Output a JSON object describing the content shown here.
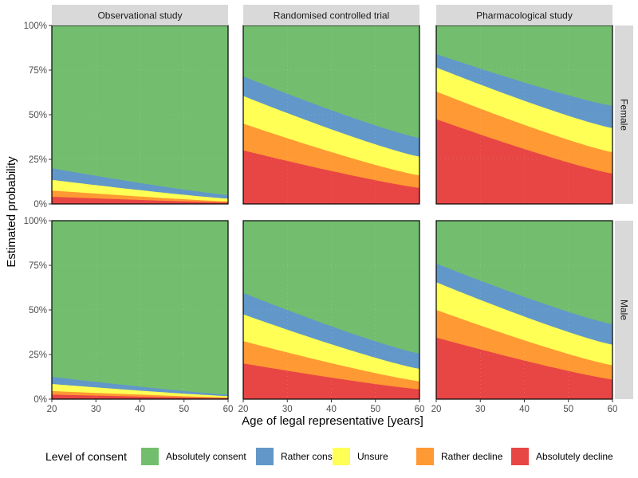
{
  "chart_data": {
    "type": "area",
    "stacked": true,
    "ylabel": "Estimated probability",
    "xlabel": "Age of legal representative [years]",
    "xlim": [
      20,
      60
    ],
    "ylim": [
      0,
      1
    ],
    "x_ticks": [
      20,
      30,
      40,
      50,
      60
    ],
    "y_ticks": [
      0,
      0.25,
      0.5,
      0.75,
      1
    ],
    "y_tick_labels": [
      "0%",
      "25%",
      "50%",
      "75%",
      "100%"
    ],
    "columns": [
      "Observational study",
      "Randomised controlled trial",
      "Pharmacological study"
    ],
    "rows": [
      "Female",
      "Male"
    ],
    "legend": {
      "title": "Level of consent",
      "position": "bottom",
      "items": [
        {
          "label": "Absolutely consent",
          "color": "#73be6e"
        },
        {
          "label": "Rather consent",
          "color": "#6198c9"
        },
        {
          "label": "Unsure",
          "color": "#ffff55"
        },
        {
          "label": "Rather decline",
          "color": "#ff9933"
        },
        {
          "label": "Absolutely decline",
          "color": "#e84545"
        }
      ]
    },
    "series_note": "Each panel gives cumulative probability boundaries (at ages 20 and 60) between adjacent categories, from bottom: decline | rather decline | unsure | rather consent | absolutely consent.",
    "panels": [
      {
        "column": "Observational study",
        "row": "Female",
        "x": [
          20,
          60
        ],
        "boundaries": [
          [
            0.04,
            0.008
          ],
          [
            0.075,
            0.014
          ],
          [
            0.135,
            0.03
          ],
          [
            0.2,
            0.05
          ]
        ]
      },
      {
        "column": "Randomised controlled trial",
        "row": "Female",
        "x": [
          20,
          60
        ],
        "boundaries": [
          [
            0.3,
            0.09
          ],
          [
            0.45,
            0.16
          ],
          [
            0.605,
            0.265
          ],
          [
            0.715,
            0.37
          ]
        ]
      },
      {
        "column": "Pharmacological study",
        "row": "Female",
        "x": [
          20,
          60
        ],
        "boundaries": [
          [
            0.475,
            0.17
          ],
          [
            0.63,
            0.29
          ],
          [
            0.765,
            0.425
          ],
          [
            0.84,
            0.55
          ]
        ]
      },
      {
        "column": "Observational study",
        "row": "Male",
        "x": [
          20,
          60
        ],
        "boundaries": [
          [
            0.025,
            0.005
          ],
          [
            0.045,
            0.009
          ],
          [
            0.085,
            0.017
          ],
          [
            0.125,
            0.025
          ]
        ]
      },
      {
        "column": "Randomised controlled trial",
        "row": "Male",
        "x": [
          20,
          60
        ],
        "boundaries": [
          [
            0.2,
            0.055
          ],
          [
            0.325,
            0.1
          ],
          [
            0.475,
            0.17
          ],
          [
            0.595,
            0.255
          ]
        ]
      },
      {
        "column": "Pharmacological study",
        "row": "Male",
        "x": [
          20,
          60
        ],
        "boundaries": [
          [
            0.345,
            0.11
          ],
          [
            0.5,
            0.19
          ],
          [
            0.655,
            0.305
          ],
          [
            0.76,
            0.42
          ]
        ]
      }
    ]
  }
}
